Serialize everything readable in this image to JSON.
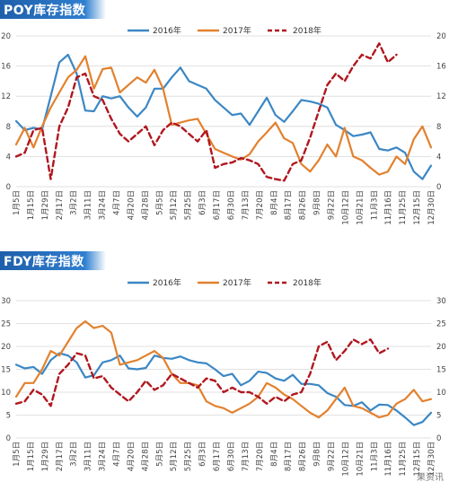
{
  "chart_data": [
    {
      "type": "line",
      "title": "POY库存指数",
      "ylim": [
        0,
        20
      ],
      "yticks": [
        0,
        4,
        8,
        12,
        16,
        20
      ],
      "xtick_labels": [
        "1月5日",
        "1月15日",
        "1月29日",
        "2月17日",
        "3月2日",
        "3月11日",
        "3月24日",
        "4月7日",
        "4月20日",
        "4月28日",
        "5月5日",
        "5月12日",
        "5月25日",
        "6月3日",
        "6月17日",
        "6月30日",
        "7月13日",
        "7月20日",
        "8月4日",
        "8月17日",
        "8月26日",
        "9月8日",
        "9月22日",
        "10月12日",
        "10月21日",
        "11月3日",
        "11月16日",
        "11月25日",
        "12月15日",
        "12月30日"
      ],
      "x_count": 49,
      "legend_position": "top",
      "series": [
        {
          "name": "2016年",
          "color": "#3b87c5",
          "dash": "solid",
          "values": [
            8.7,
            7.5,
            7.8,
            7.6,
            12.0,
            16.5,
            17.5,
            15.0,
            10.1,
            10.0,
            12.0,
            11.7,
            12.0,
            10.5,
            9.3,
            10.5,
            13.0,
            13.0,
            14.5,
            15.8,
            14.0,
            13.5,
            13.0,
            11.5,
            10.5,
            9.5,
            9.7,
            8.2,
            10.0,
            11.8,
            9.5,
            8.6,
            10.0,
            11.5,
            11.3,
            11.0,
            10.5,
            8.2,
            7.5,
            6.7,
            6.9,
            7.2,
            5.0,
            4.8,
            5.2,
            4.5,
            2.0,
            1.0,
            2.8
          ]
        },
        {
          "name": "2017年",
          "color": "#e2812e",
          "dash": "solid",
          "values": [
            5.6,
            7.8,
            5.2,
            8.0,
            10.5,
            12.5,
            14.5,
            15.5,
            17.3,
            13.0,
            15.6,
            15.8,
            12.5,
            13.5,
            14.5,
            13.8,
            15.5,
            13.0,
            8.2,
            8.5,
            8.8,
            9.0,
            7.0,
            5.0,
            4.5,
            4.0,
            3.6,
            4.3,
            6.0,
            7.2,
            8.5,
            6.4,
            5.8,
            3.0,
            2.0,
            3.5,
            5.6,
            4.0,
            7.8,
            4.0,
            3.5,
            2.5,
            1.6,
            2.0,
            4.0,
            3.0,
            6.3,
            8.0,
            5.2
          ]
        },
        {
          "name": "2018年",
          "color": "#b0171f",
          "dash": "6,4",
          "values": [
            4.0,
            4.5,
            7.5,
            7.8,
            1.0,
            8.0,
            10.5,
            14.5,
            15.0,
            12.0,
            11.5,
            9.0,
            7.0,
            6.0,
            7.0,
            8.0,
            5.5,
            7.5,
            8.5,
            8.0,
            7.0,
            6.0,
            7.5,
            2.5,
            3.0,
            3.2,
            3.8,
            3.5,
            3.0,
            1.3,
            1.0,
            0.8,
            3.0,
            3.5,
            6.5,
            10.0,
            13.5,
            15.0,
            14.0,
            16.0,
            17.5,
            17.0,
            19.0,
            16.5,
            17.5
          ]
        }
      ]
    },
    {
      "type": "line",
      "title": "FDY库存指数",
      "ylim": [
        0,
        30
      ],
      "yticks": [
        0,
        5,
        10,
        15,
        20,
        25,
        30
      ],
      "xtick_labels": [
        "1月5日",
        "1月15日",
        "1月29日",
        "2月17日",
        "3月2日",
        "3月11日",
        "3月24日",
        "4月7日",
        "4月20日",
        "4月28日",
        "5月5日",
        "5月12日",
        "5月25日",
        "6月3日",
        "6月17日",
        "6月30日",
        "7月13日",
        "7月20日",
        "8月4日",
        "8月17日",
        "8月26日",
        "9月8日",
        "9月22日",
        "10月12日",
        "10月21日",
        "11月3日",
        "11月16日",
        "11月25日",
        "12月15日",
        "12月30日"
      ],
      "x_count": 49,
      "legend_position": "top",
      "series": [
        {
          "name": "2016年",
          "color": "#3b87c5",
          "dash": "solid",
          "values": [
            16.0,
            15.2,
            15.5,
            14.0,
            17.0,
            18.5,
            18.0,
            16.5,
            13.2,
            13.7,
            16.5,
            17.0,
            18.0,
            15.2,
            15.0,
            15.3,
            18.0,
            17.5,
            17.3,
            17.8,
            17.0,
            16.5,
            16.3,
            15.0,
            13.5,
            14.0,
            11.5,
            12.5,
            14.5,
            14.2,
            13.0,
            12.5,
            13.8,
            11.8,
            11.8,
            11.5,
            9.8,
            9.0,
            7.2,
            7.0,
            7.8,
            6.0,
            7.3,
            7.2,
            6.0,
            4.5,
            2.8,
            3.5,
            5.5
          ]
        },
        {
          "name": "2017年",
          "color": "#e2812e",
          "dash": "solid",
          "values": [
            9.0,
            12.0,
            12.0,
            15.0,
            19.0,
            18.0,
            21.0,
            24.0,
            25.5,
            24.0,
            24.5,
            23.0,
            16.0,
            16.5,
            17.0,
            18.0,
            19.0,
            17.5,
            14.0,
            12.0,
            12.0,
            11.5,
            8.0,
            7.0,
            6.5,
            5.5,
            6.5,
            7.5,
            9.0,
            12.0,
            11.0,
            9.5,
            8.5,
            7.0,
            5.5,
            4.5,
            6.0,
            8.5,
            11.0,
            7.0,
            6.5,
            5.5,
            4.5,
            5.0,
            7.5,
            8.5,
            10.5,
            8.0,
            8.5
          ]
        },
        {
          "name": "2018年",
          "color": "#b0171f",
          "dash": "6,4",
          "values": [
            7.5,
            8.0,
            10.5,
            9.5,
            7.0,
            14.0,
            16.0,
            18.5,
            18.0,
            13.0,
            13.5,
            11.0,
            9.5,
            8.0,
            10.0,
            12.5,
            10.5,
            11.5,
            14.0,
            13.0,
            12.0,
            11.0,
            13.0,
            12.5,
            10.0,
            11.0,
            10.0,
            10.0,
            9.0,
            7.5,
            9.0,
            8.0,
            9.5,
            10.0,
            14.0,
            20.0,
            21.0,
            17.0,
            19.0,
            21.5,
            20.5,
            21.5,
            18.5,
            19.5
          ]
        }
      ]
    }
  ],
  "watermark": "果资讯"
}
